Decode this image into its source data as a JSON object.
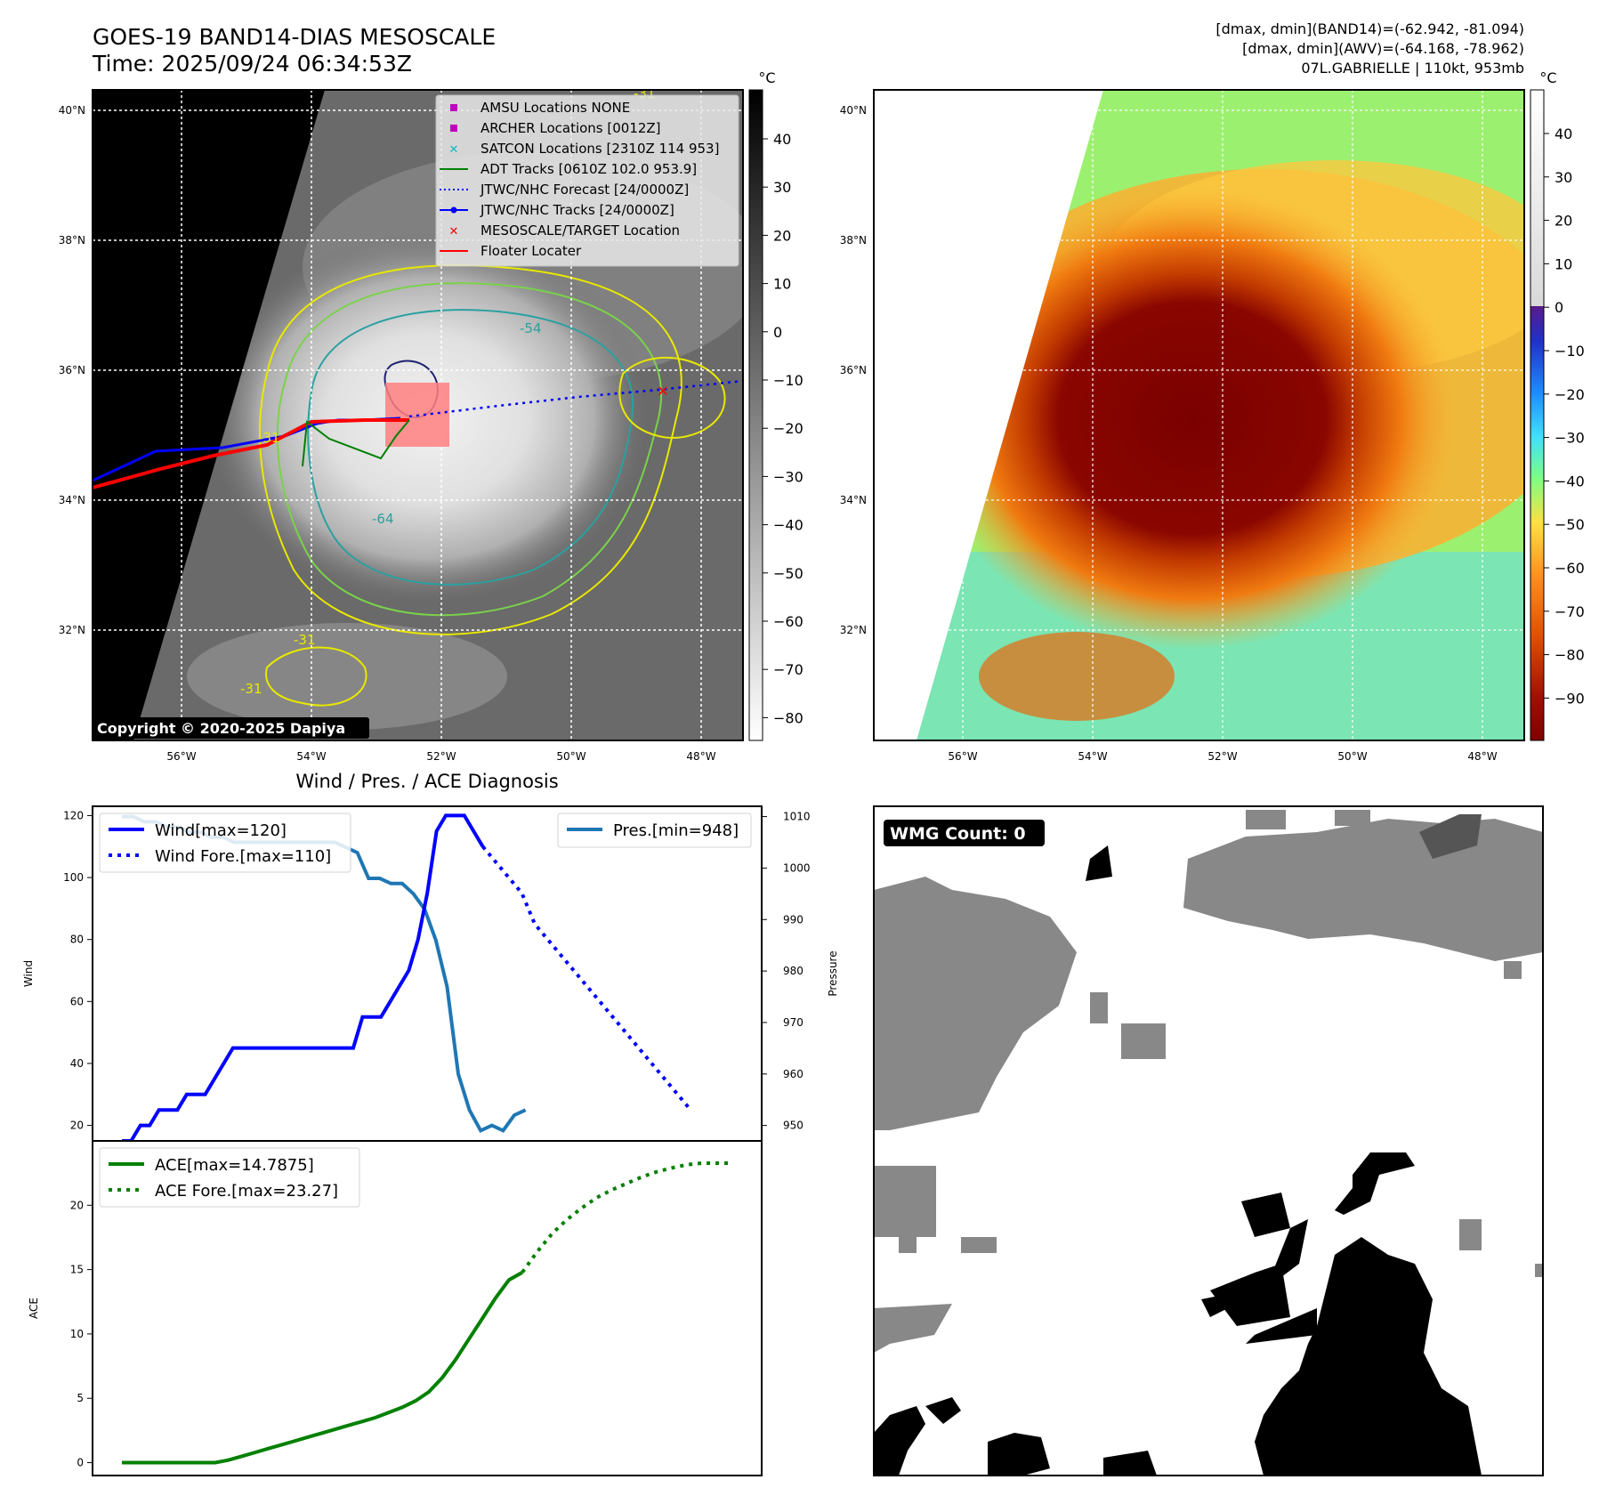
{
  "header": {
    "title_line1": "GOES-19 BAND14-DIAS MESOSCALE",
    "title_line2": "Time: 2025/09/24 06:34:53Z",
    "info_line1": "[dmax, dmin](BAND14)=(-62.942, -81.094)",
    "info_line2": "[dmax, dmin](AWV)=(-64.168, -78.962)",
    "info_line3": "07L.GABRIELLE | 110kt, 953mb"
  },
  "map": {
    "lat_labels": [
      "40°N",
      "38°N",
      "36°N",
      "34°N",
      "32°N"
    ],
    "lon_labels": [
      "56°W",
      "54°W",
      "52°W",
      "50°W",
      "48°W"
    ],
    "copyright": "Copyright © 2020-2025 Dapiya",
    "contour_labels": [
      "-54",
      "-64",
      "-31",
      "-31",
      "-31",
      "-31"
    ],
    "legend": [
      {
        "label": "AMSU Locations NONE",
        "color": "#c000c0",
        "marker": "square"
      },
      {
        "label": "ARCHER Locations [0012Z]",
        "color": "#c000c0",
        "marker": "square"
      },
      {
        "label": "SATCON Locations [2310Z 114 953]",
        "color": "#00bfbf",
        "marker": "x"
      },
      {
        "label": "ADT Tracks [0610Z 102.0 953.9]",
        "color": "#008000",
        "marker": "line"
      },
      {
        "label": "JTWC/NHC Forecast [24/0000Z]",
        "color": "#0000ff",
        "marker": "dotted"
      },
      {
        "label": "JTWC/NHC Tracks [24/0000Z]",
        "color": "#0000ff",
        "marker": "line-dot"
      },
      {
        "label": "MESOSCALE/TARGET Location",
        "color": "#ff0000",
        "marker": "x"
      },
      {
        "label": "Floater Locater",
        "color": "#ff0000",
        "marker": "line"
      }
    ]
  },
  "colorbar_gray": {
    "unit": "°C",
    "ticks": [
      "40",
      "30",
      "20",
      "10",
      "0",
      "−10",
      "−20",
      "−30",
      "−40",
      "−50",
      "−60",
      "−70",
      "−80"
    ]
  },
  "colorbar_color": {
    "unit": "°C",
    "ticks": [
      "40",
      "30",
      "20",
      "10",
      "0",
      "−10",
      "−20",
      "−30",
      "−40",
      "−50",
      "−60",
      "−70",
      "−80",
      "−90"
    ]
  },
  "wmg": {
    "label": "WMG Count: 0"
  },
  "chart_data": [
    {
      "type": "line",
      "title": "Wind / Pres. / ACE Diagnosis",
      "ylabel": "Wind",
      "y2label": "Pressure",
      "ylim": [
        15,
        123
      ],
      "y2lim": [
        947,
        1012
      ],
      "y_ticks": [
        "120",
        "100",
        "80",
        "60",
        "40",
        "20"
      ],
      "y2_ticks": [
        "1010",
        "1000",
        "990",
        "980",
        "970",
        "960",
        "950"
      ],
      "legend_left": [
        "Wind[max=120]",
        "Wind Fore.[max=110]"
      ],
      "legend_right": [
        "Pres.[min=948]"
      ],
      "series": [
        {
          "name": "Wind[max=120]",
          "color": "#0000ff",
          "style": "solid",
          "axis": "left",
          "values": [
            15,
            15,
            20,
            20,
            25,
            25,
            25,
            30,
            30,
            30,
            35,
            40,
            45,
            45,
            45,
            45,
            45,
            45,
            45,
            45,
            45,
            45,
            45,
            45,
            45,
            45,
            55,
            55,
            55,
            60,
            65,
            70,
            80,
            95,
            115,
            120,
            120,
            120,
            115,
            110
          ]
        },
        {
          "name": "Wind Fore.[max=110]",
          "color": "#0000ff",
          "style": "dotted",
          "axis": "left",
          "values": [
            110,
            105,
            100,
            95,
            85,
            80,
            75,
            70,
            65,
            60,
            55,
            50,
            45,
            40,
            35,
            30,
            25
          ]
        },
        {
          "name": "Pres.[min=948]",
          "color": "#1f77b4",
          "style": "solid",
          "axis": "right",
          "values": [
            1010,
            1010,
            1009,
            1009,
            1008,
            1008,
            1007,
            1007,
            1006,
            1006,
            1005,
            1005,
            1005,
            1005,
            1005,
            1005,
            1005,
            1005,
            1005,
            1005,
            1004,
            1003,
            998,
            998,
            997,
            997,
            995,
            992,
            986,
            977,
            960,
            953,
            949,
            950,
            949,
            952,
            953
          ]
        }
      ]
    },
    {
      "type": "line",
      "ylabel": "ACE",
      "ylim": [
        -1,
        25
      ],
      "y_ticks": [
        "20",
        "15",
        "10",
        "5",
        "0"
      ],
      "legend": [
        "ACE[max=14.7875]",
        "ACE Fore.[max=23.27]"
      ],
      "series": [
        {
          "name": "ACE[max=14.7875]",
          "color": "#008000",
          "style": "solid",
          "values": [
            0,
            0,
            0,
            0,
            0,
            0,
            0,
            0,
            0.2,
            0.5,
            0.8,
            1.1,
            1.4,
            1.7,
            2.0,
            2.3,
            2.6,
            2.9,
            3.2,
            3.5,
            3.9,
            4.3,
            4.8,
            5.5,
            6.6,
            8.0,
            9.6,
            11.2,
            12.8,
            14.2,
            14.79
          ]
        },
        {
          "name": "ACE Fore.[max=23.27]",
          "color": "#008000",
          "style": "dotted",
          "values": [
            14.79,
            16.4,
            17.8,
            18.9,
            19.8,
            20.6,
            21.2,
            21.7,
            22.2,
            22.6,
            22.9,
            23.15,
            23.27,
            23.27,
            23.27
          ]
        }
      ]
    }
  ]
}
